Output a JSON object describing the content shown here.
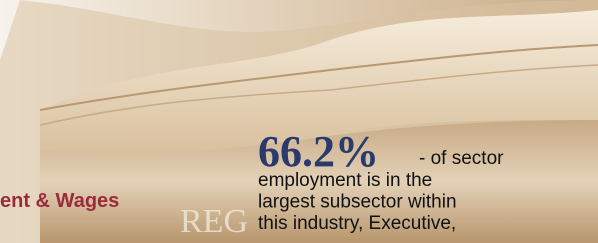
{
  "section_title": "ent & Wages",
  "spine_text": "REG",
  "stat": {
    "figure": "66.2%",
    "lead": "- of sector",
    "lines": [
      "employment is in the",
      "largest subsector within",
      "this industry, Executive,"
    ]
  }
}
